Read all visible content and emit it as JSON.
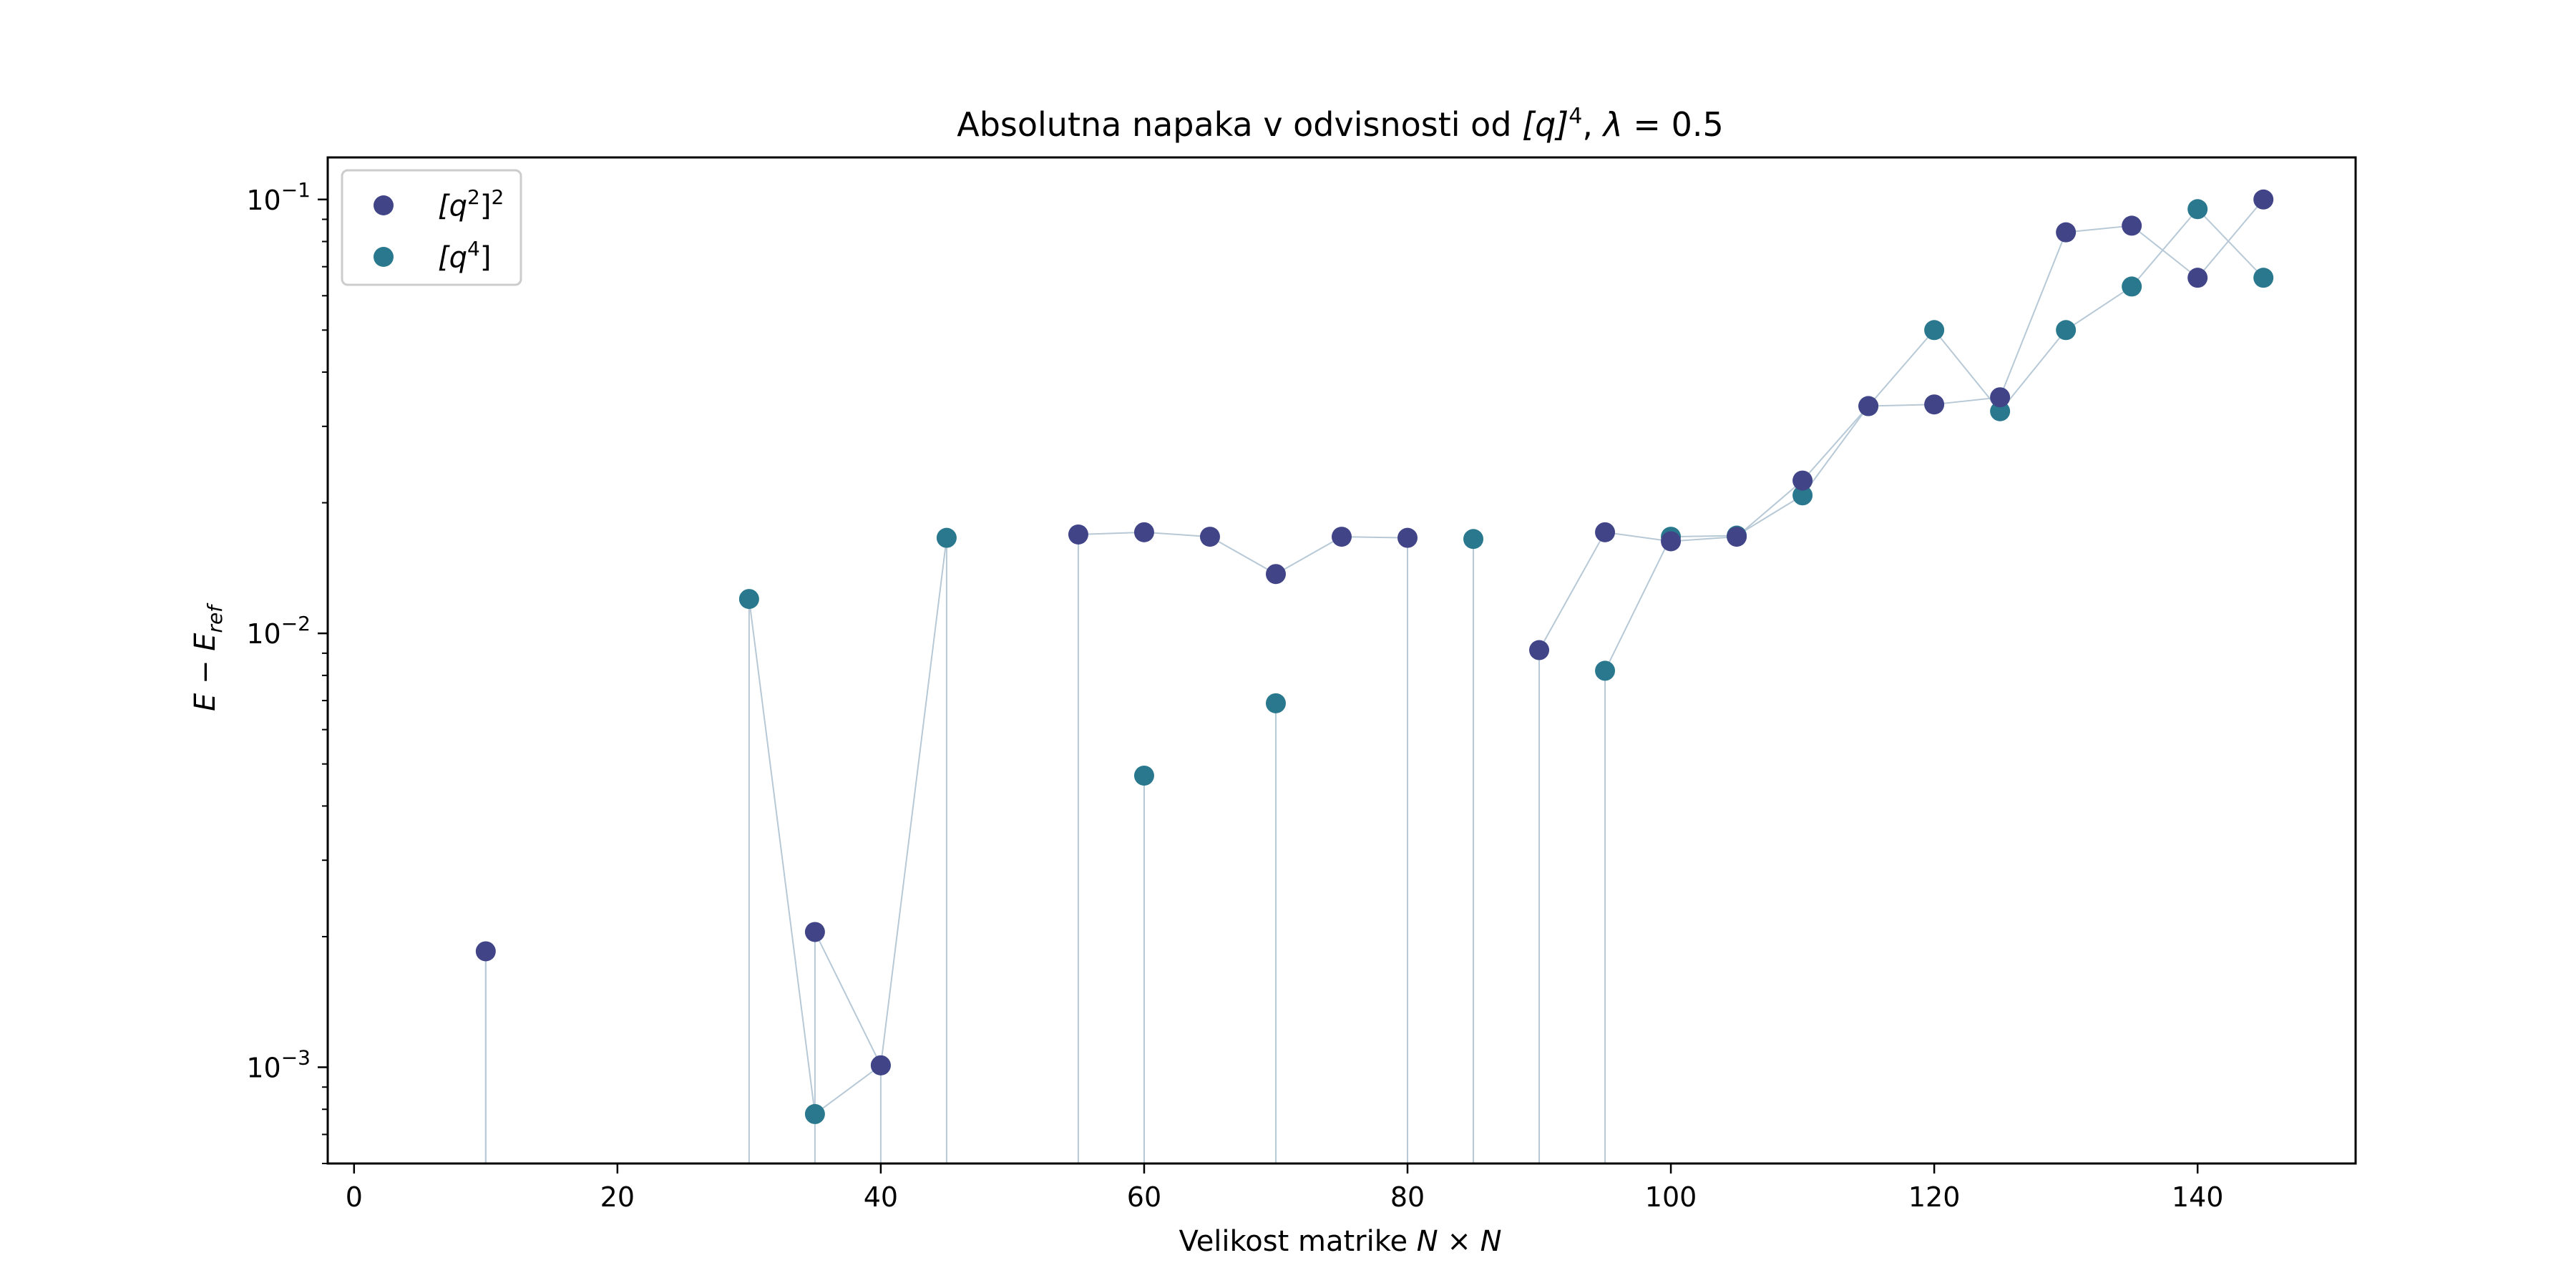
{
  "chart_data": {
    "type": "scatter",
    "title_main": "Absolutna napaka v odvisnosti od ",
    "title_q": "[q]",
    "title_q_exp": "4",
    "title_sep": ", ",
    "title_lambda": "λ",
    "title_eq": " = 0.5",
    "xlabel_main": "Velikost matrike ",
    "xlabel_math": "N × N",
    "ylabel_E": "E − E",
    "ylabel_sub": "ref",
    "xlim": [
      -2,
      152
    ],
    "ylim": [
      0.0006,
      0.125
    ],
    "yscale": "log",
    "x_ticks": [
      0,
      20,
      40,
      60,
      80,
      100,
      120,
      140
    ],
    "y_ticks": [
      {
        "value": 0.001,
        "base": "10",
        "exp": "−3"
      },
      {
        "value": 0.01,
        "base": "10",
        "exp": "−2"
      },
      {
        "value": 0.1,
        "base": "10",
        "exp": "−1"
      }
    ],
    "grid": false,
    "legend_position": "top-left",
    "colors": {
      "series_a": "#414487",
      "series_b": "#2a788e",
      "connector": "#b7c9d6"
    },
    "series": [
      {
        "name_base": "[q",
        "name_sup1": "2",
        "name_mid": "]",
        "name_sup2": "2",
        "points": [
          {
            "x": 10,
            "y": 0.00185
          },
          {
            "x": 35,
            "y": 0.00205
          },
          {
            "x": 40,
            "y": 0.00101
          },
          {
            "x": 55,
            "y": 0.0169
          },
          {
            "x": 60,
            "y": 0.0171
          },
          {
            "x": 65,
            "y": 0.0167
          },
          {
            "x": 70,
            "y": 0.0137
          },
          {
            "x": 75,
            "y": 0.0167
          },
          {
            "x": 80,
            "y": 0.0166
          },
          {
            "x": 90,
            "y": 0.00915
          },
          {
            "x": 95,
            "y": 0.0171
          },
          {
            "x": 100,
            "y": 0.0163
          },
          {
            "x": 105,
            "y": 0.0167
          },
          {
            "x": 110,
            "y": 0.0225
          },
          {
            "x": 115,
            "y": 0.0334
          },
          {
            "x": 120,
            "y": 0.0337
          },
          {
            "x": 125,
            "y": 0.035
          },
          {
            "x": 130,
            "y": 0.084
          },
          {
            "x": 135,
            "y": 0.087
          },
          {
            "x": 140,
            "y": 0.066
          },
          {
            "x": 145,
            "y": 0.1
          }
        ]
      },
      {
        "name_base": "[q",
        "name_sup1": "4",
        "name_mid": "]",
        "name_sup2": "",
        "points": [
          {
            "x": 30,
            "y": 0.012
          },
          {
            "x": 35,
            "y": 0.00078
          },
          {
            "x": 40,
            "y": 0.00101
          },
          {
            "x": 45,
            "y": 0.0166
          },
          {
            "x": 60,
            "y": 0.0047
          },
          {
            "x": 70,
            "y": 0.0069
          },
          {
            "x": 85,
            "y": 0.0165
          },
          {
            "x": 95,
            "y": 0.0082
          },
          {
            "x": 100,
            "y": 0.0167
          },
          {
            "x": 105,
            "y": 0.0168
          },
          {
            "x": 110,
            "y": 0.0208
          },
          {
            "x": 115,
            "y": 0.0334
          },
          {
            "x": 120,
            "y": 0.05
          },
          {
            "x": 125,
            "y": 0.0325
          },
          {
            "x": 130,
            "y": 0.05
          },
          {
            "x": 135,
            "y": 0.063
          },
          {
            "x": 140,
            "y": 0.095
          },
          {
            "x": 145,
            "y": 0.066
          }
        ]
      }
    ]
  }
}
